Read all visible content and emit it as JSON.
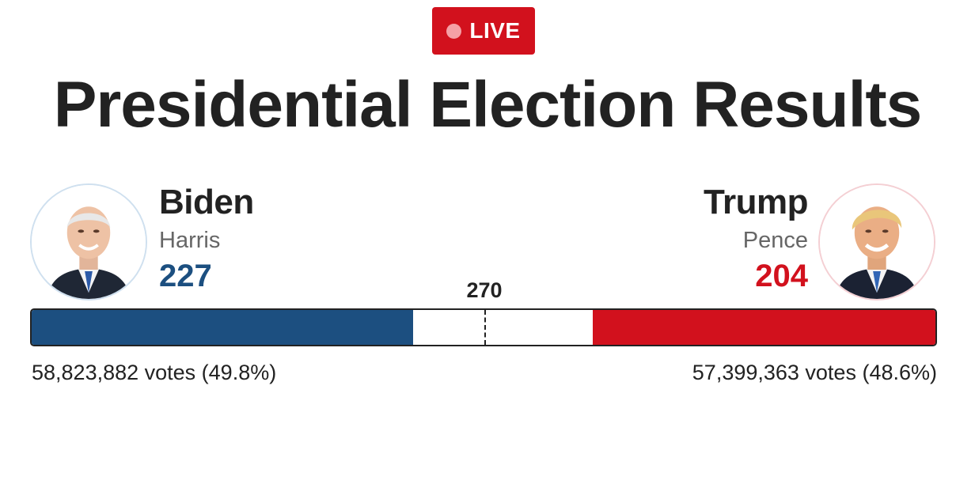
{
  "badge": {
    "label": "LIVE"
  },
  "title": "Presidential Election Results",
  "threshold": {
    "label": "270",
    "value": 270
  },
  "electoral_total": 538,
  "candidates": [
    {
      "side": "left",
      "name": "Biden",
      "running_mate": "Harris",
      "electoral_votes": "227",
      "electoral_votes_num": 227,
      "votes_text": "58,823,882 votes (49.8%)",
      "color": "#1c4f80",
      "avatar_icon": "candidate-portrait"
    },
    {
      "side": "right",
      "name": "Trump",
      "running_mate": "Pence",
      "electoral_votes": "204",
      "electoral_votes_num": 204,
      "votes_text": "57,399,363 votes (48.6%)",
      "color": "#d2111d",
      "avatar_icon": "candidate-portrait"
    }
  ],
  "colors": {
    "badge": "#d2111d",
    "undecided": "#ffffff"
  }
}
